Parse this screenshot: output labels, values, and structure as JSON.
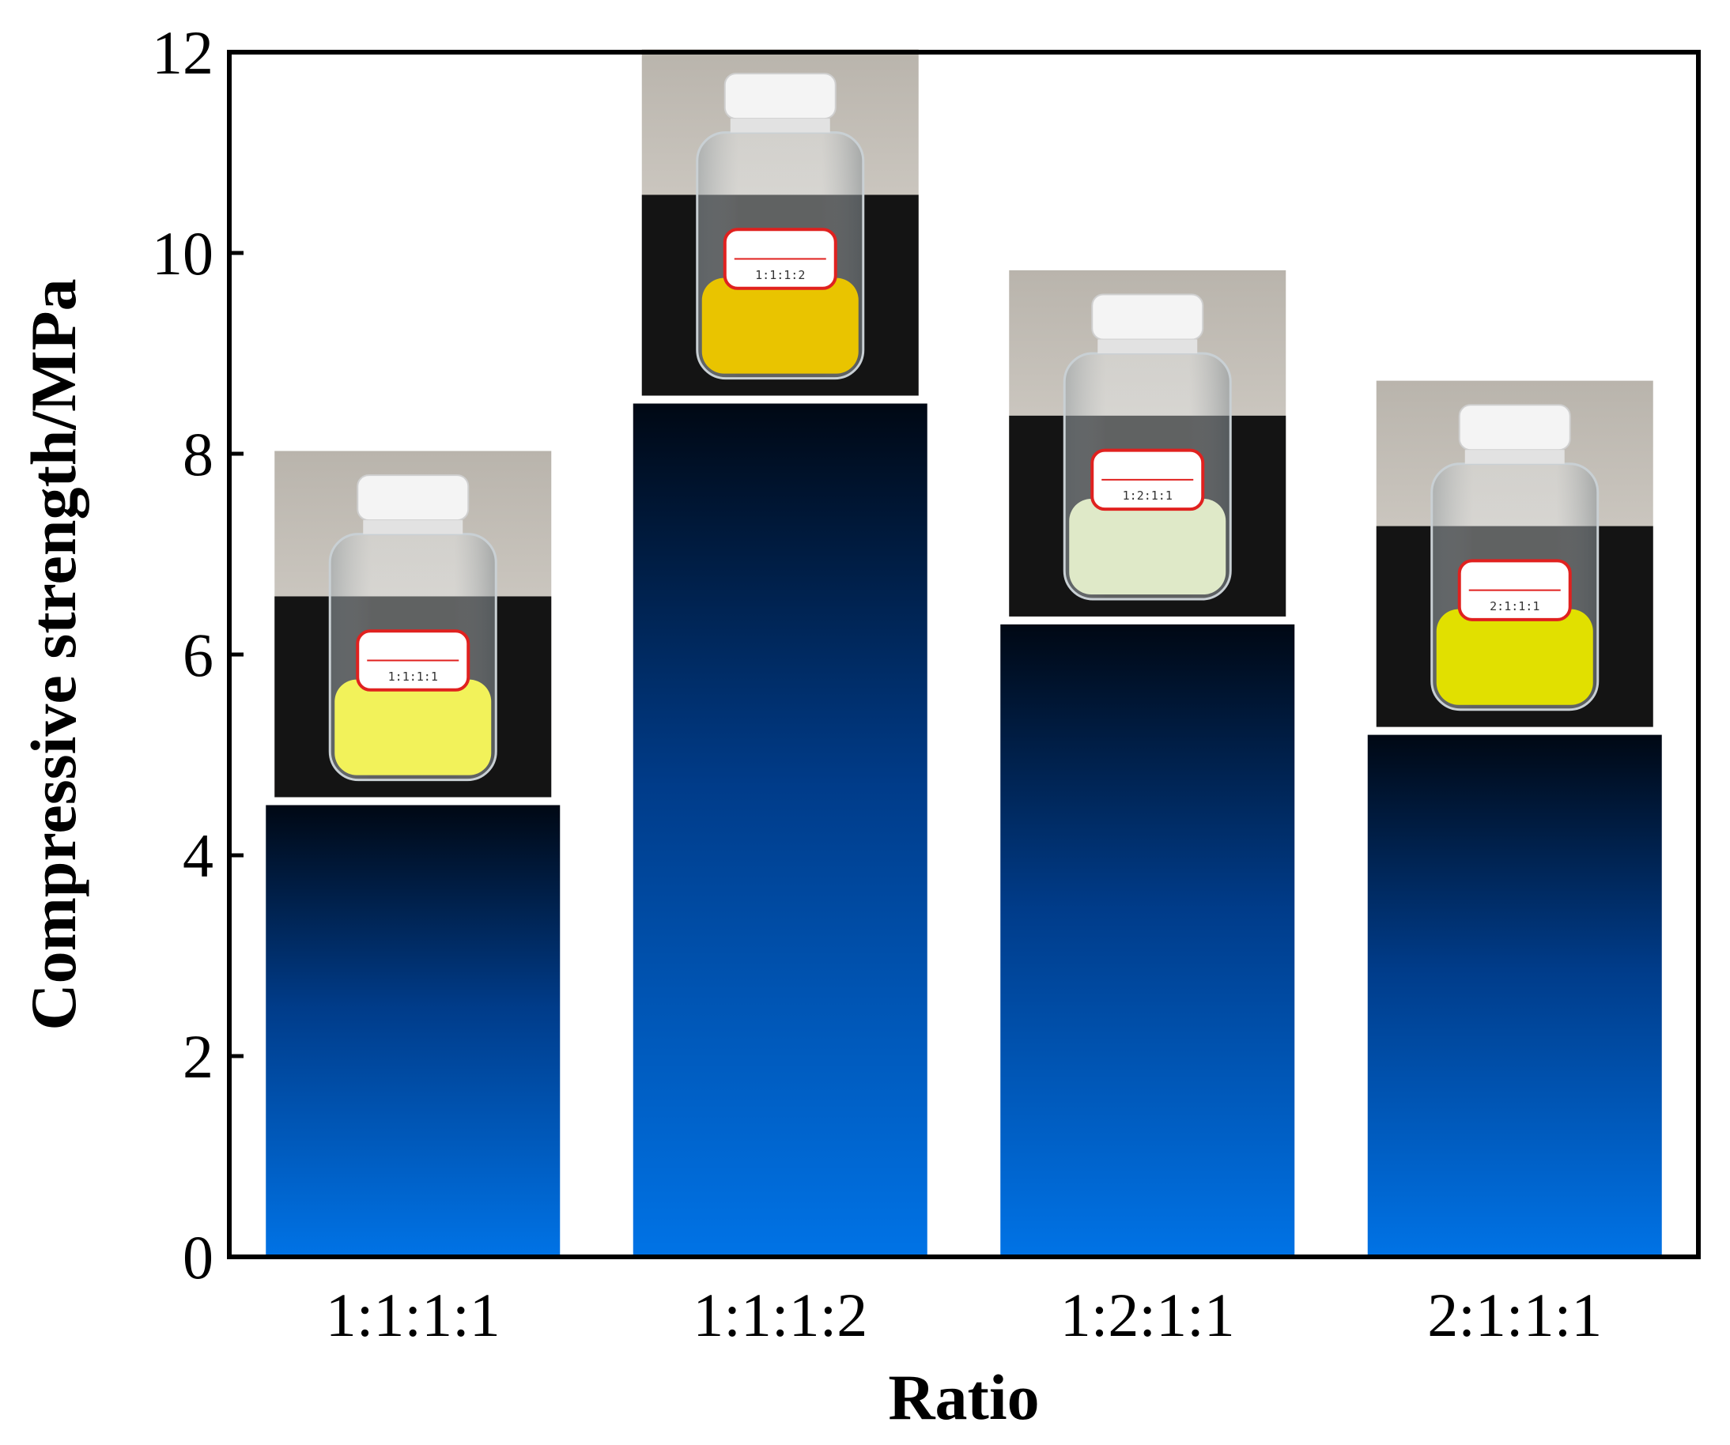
{
  "chart_data": {
    "type": "bar",
    "title": "",
    "xlabel": "Ratio",
    "ylabel": "Compressive strength/MPa",
    "categories": [
      "1:1:1:1",
      "1:1:1:2",
      "1:2:1:1",
      "2:1:1:1"
    ],
    "values": [
      4.5,
      8.5,
      6.3,
      5.2
    ],
    "ylim": [
      0,
      12
    ],
    "yticks": [
      "0",
      "2",
      "4",
      "6",
      "8",
      "10",
      "12"
    ],
    "grid": false,
    "legend": "none",
    "bar_gradient": {
      "top": "#000814",
      "bottom": "#0073e6"
    },
    "insets": [
      {
        "category": "1:1:1:1",
        "liquid": "#f2f25a",
        "label_text": "1:1:1:1"
      },
      {
        "category": "1:1:1:2",
        "liquid": "#e9c400",
        "label_text": "1:1:1:2"
      },
      {
        "category": "1:2:1:1",
        "liquid": "#dfe9c8",
        "label_text": "1:2:1:1"
      },
      {
        "category": "2:1:1:1",
        "liquid": "#e1e000",
        "label_text": "2:1:1:1"
      }
    ]
  }
}
